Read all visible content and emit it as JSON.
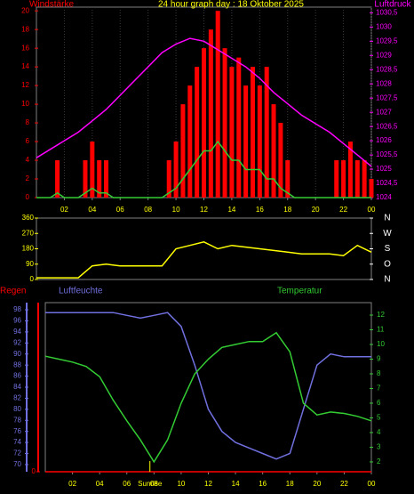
{
  "chart_data": [
    {
      "type": "bar",
      "title": "24 hour graph day : 18 Oktober 2025",
      "ylabel": "Windstärke",
      "y2label": "Luftdruck",
      "xlim": [
        0,
        24
      ],
      "ylim": [
        0,
        20.4
      ],
      "y2lim": [
        1024,
        1030.7
      ],
      "ycolor": "#ff0000",
      "y2color": "#ff00ff",
      "xcolor": "#ffff00",
      "xticks": [
        {
          "value": 2,
          "label": "02"
        },
        {
          "value": 4,
          "label": "04"
        },
        {
          "value": 6,
          "label": "06"
        },
        {
          "value": 8,
          "label": "08"
        },
        10,
        12,
        14,
        16,
        18,
        20,
        22,
        {
          "value": 24,
          "label": "00"
        }
      ],
      "yticks": [
        0,
        2,
        4,
        6,
        8,
        10,
        12,
        14,
        16,
        18,
        20
      ],
      "y2ticks": [
        1024,
        {
          "value": 1024.5,
          "label": "1024,5"
        },
        1025,
        {
          "value": 1025.5,
          "label": "1025,5"
        },
        1026,
        {
          "value": 1026.5,
          "label": "1026,5"
        },
        1027,
        {
          "value": 1027.5,
          "label": "1027,5"
        },
        1028,
        {
          "value": 1028.5,
          "label": "1028,5"
        },
        1029,
        {
          "value": 1029.5,
          "label": "1029,5"
        },
        1030,
        {
          "value": 1030.5,
          "label": "1030,5"
        }
      ],
      "grid": true,
      "series": [
        {
          "kind": "bar",
          "color": "#ff0000",
          "x": [
            0,
            0.5,
            1,
            1.5,
            2,
            2.5,
            3,
            3.5,
            4,
            4.5,
            5,
            5.5,
            6,
            6.5,
            7,
            7.5,
            8,
            8.5,
            9,
            9.5,
            10,
            10.5,
            11,
            11.5,
            12,
            12.5,
            13,
            13.5,
            14,
            14.5,
            15,
            15.5,
            16,
            16.5,
            17,
            17.5,
            18,
            18.5,
            19,
            19.5,
            20,
            20.5,
            21,
            21.5,
            22,
            22.5,
            23,
            23.5,
            24
          ],
          "values": [
            0,
            0,
            0,
            4,
            0,
            0,
            0,
            4,
            6,
            4,
            4,
            0,
            0,
            0,
            0,
            0,
            0,
            0,
            0,
            4,
            6,
            10,
            12,
            14,
            16,
            18,
            20,
            16,
            14,
            15,
            12,
            14,
            12,
            14,
            10,
            8,
            4,
            0,
            0,
            0,
            0,
            0,
            0,
            4,
            4,
            6,
            4,
            4,
            2
          ]
        },
        {
          "kind": "line",
          "color": "#33cc33",
          "x": [
            0,
            0.5,
            1,
            1.5,
            2,
            2.5,
            3,
            3.5,
            4,
            4.5,
            5,
            5.5,
            6,
            6.5,
            7,
            7.5,
            8,
            8.5,
            9,
            9.5,
            10,
            10.5,
            11,
            11.5,
            12,
            12.5,
            13,
            13.5,
            14,
            14.5,
            15,
            15.5,
            16,
            16.5,
            17,
            17.5,
            18,
            18.5,
            19,
            19.5,
            20,
            20.5,
            21,
            21.5,
            22,
            22.5,
            23,
            23.5,
            24
          ],
          "values": [
            0,
            0,
            0,
            0.5,
            0,
            0,
            0,
            0.5,
            1,
            0.5,
            0.5,
            0,
            0,
            0,
            0,
            0,
            0,
            0,
            0,
            0.5,
            1,
            2,
            3,
            4,
            5,
            5,
            6,
            5,
            4,
            4,
            3,
            3,
            3,
            2,
            2,
            1,
            0.5,
            0,
            0,
            0,
            0,
            0,
            0,
            0,
            0,
            0,
            0,
            0,
            0
          ]
        },
        {
          "kind": "line",
          "axis": "y2",
          "color": "#ff00ff",
          "x": [
            0,
            1,
            2,
            3,
            4,
            5,
            6,
            7,
            8,
            9,
            10,
            11,
            12,
            13,
            14,
            15,
            16,
            17,
            18,
            19,
            20,
            21,
            22,
            23,
            24
          ],
          "values": [
            1025.4,
            1025.7,
            1026.0,
            1026.3,
            1026.7,
            1027.1,
            1027.6,
            1028.1,
            1028.6,
            1029.1,
            1029.4,
            1029.6,
            1029.5,
            1029.2,
            1028.9,
            1028.6,
            1028.2,
            1027.7,
            1027.3,
            1026.9,
            1026.6,
            1026.3,
            1025.9,
            1025.5,
            1025.1
          ]
        }
      ]
    },
    {
      "type": "line",
      "xlim": [
        0,
        24
      ],
      "ylim": [
        0,
        360
      ],
      "y2lim": [
        0,
        360
      ],
      "ycolor": "#ffff00",
      "y2color": "#ffffff",
      "yticks": [
        0,
        90,
        180,
        270,
        360
      ],
      "y2ticks": [
        {
          "value": 360,
          "label": "N"
        },
        {
          "value": 270,
          "label": "W"
        },
        {
          "value": 180,
          "label": "S"
        },
        {
          "value": 90,
          "label": "O"
        },
        {
          "value": 0,
          "label": "N"
        }
      ],
      "series": [
        {
          "kind": "line",
          "color": "#ffff00",
          "x": [
            0,
            1,
            2,
            3,
            4,
            5,
            6,
            7,
            8,
            9,
            10,
            11,
            12,
            13,
            14,
            15,
            16,
            17,
            18,
            19,
            20,
            21,
            22,
            23,
            24
          ],
          "values": [
            10,
            10,
            10,
            10,
            80,
            90,
            80,
            80,
            80,
            80,
            180,
            200,
            220,
            180,
            200,
            190,
            180,
            170,
            160,
            150,
            150,
            150,
            140,
            200,
            160
          ]
        }
      ]
    },
    {
      "type": "line",
      "ylabel": "Luftfeuchte",
      "y2label": "Temperatur",
      "y3label": "Regen",
      "xlim": [
        0,
        24
      ],
      "ylim": [
        68.7,
        99.3
      ],
      "y2lim": [
        1.33,
        12.85
      ],
      "y3lim": [
        0,
        6
      ],
      "ycolor": "#7070e0",
      "y2color": "#33cc33",
      "y3color": "#ff0000",
      "xcolor": "#ffff00",
      "xticks": [
        {
          "value": 2,
          "label": "02"
        },
        {
          "value": 4,
          "label": "04"
        },
        {
          "value": 6,
          "label": "06"
        },
        {
          "value": 8,
          "label": "08"
        },
        10,
        12,
        14,
        16,
        18,
        20,
        22,
        {
          "value": 24,
          "label": "00"
        }
      ],
      "yticks": [
        70,
        72,
        74,
        76,
        78,
        80,
        82,
        84,
        86,
        88,
        90,
        92,
        94,
        96,
        98
      ],
      "y2ticks": [
        2,
        3,
        4,
        5,
        6,
        7,
        8,
        9,
        10,
        11,
        12
      ],
      "y3ticks": [
        0
      ],
      "annotations": [
        {
          "text": "Sunrise",
          "x": 7.7
        }
      ],
      "series": [
        {
          "kind": "line",
          "axis": "y3",
          "color": "#ff0000",
          "x": [
            0,
            1,
            2,
            3,
            4,
            5,
            6,
            7,
            8,
            9,
            10,
            11,
            12,
            13,
            14,
            15,
            16,
            17,
            18,
            19,
            20,
            21,
            22,
            23,
            24
          ],
          "values": [
            0,
            0,
            0,
            0,
            0,
            0,
            0,
            0,
            0,
            0,
            0,
            0,
            0,
            0,
            0,
            0,
            0,
            0,
            0,
            0,
            0,
            0,
            0,
            0,
            0
          ]
        },
        {
          "kind": "line",
          "color": "#7070e0",
          "x": [
            0,
            1,
            2,
            3,
            4,
            5,
            6,
            7,
            8,
            9,
            10,
            11,
            12,
            13,
            14,
            15,
            16,
            17,
            18,
            19,
            20,
            21,
            22,
            23,
            24
          ],
          "values": [
            97.5,
            97.5,
            97.5,
            97.5,
            97.5,
            97.5,
            97,
            96.5,
            97,
            97.5,
            95,
            88,
            80,
            76,
            74,
            73,
            72,
            71,
            72,
            80,
            88,
            90,
            89.5,
            89.5,
            89.5
          ]
        },
        {
          "kind": "line",
          "axis": "y2",
          "color": "#33cc33",
          "x": [
            0,
            1,
            2,
            3,
            4,
            5,
            6,
            7,
            8,
            9,
            10,
            11,
            12,
            13,
            14,
            15,
            16,
            17,
            18,
            19,
            20,
            21,
            22,
            23,
            24
          ],
          "values": [
            9.2,
            9,
            8.8,
            8.5,
            7.8,
            6.2,
            4.8,
            3.5,
            2.0,
            3.5,
            6,
            8,
            9,
            9.8,
            10,
            10.2,
            10.2,
            10.8,
            9.5,
            6,
            5.2,
            5.4,
            5.3,
            5.1,
            4.8
          ]
        }
      ]
    }
  ]
}
